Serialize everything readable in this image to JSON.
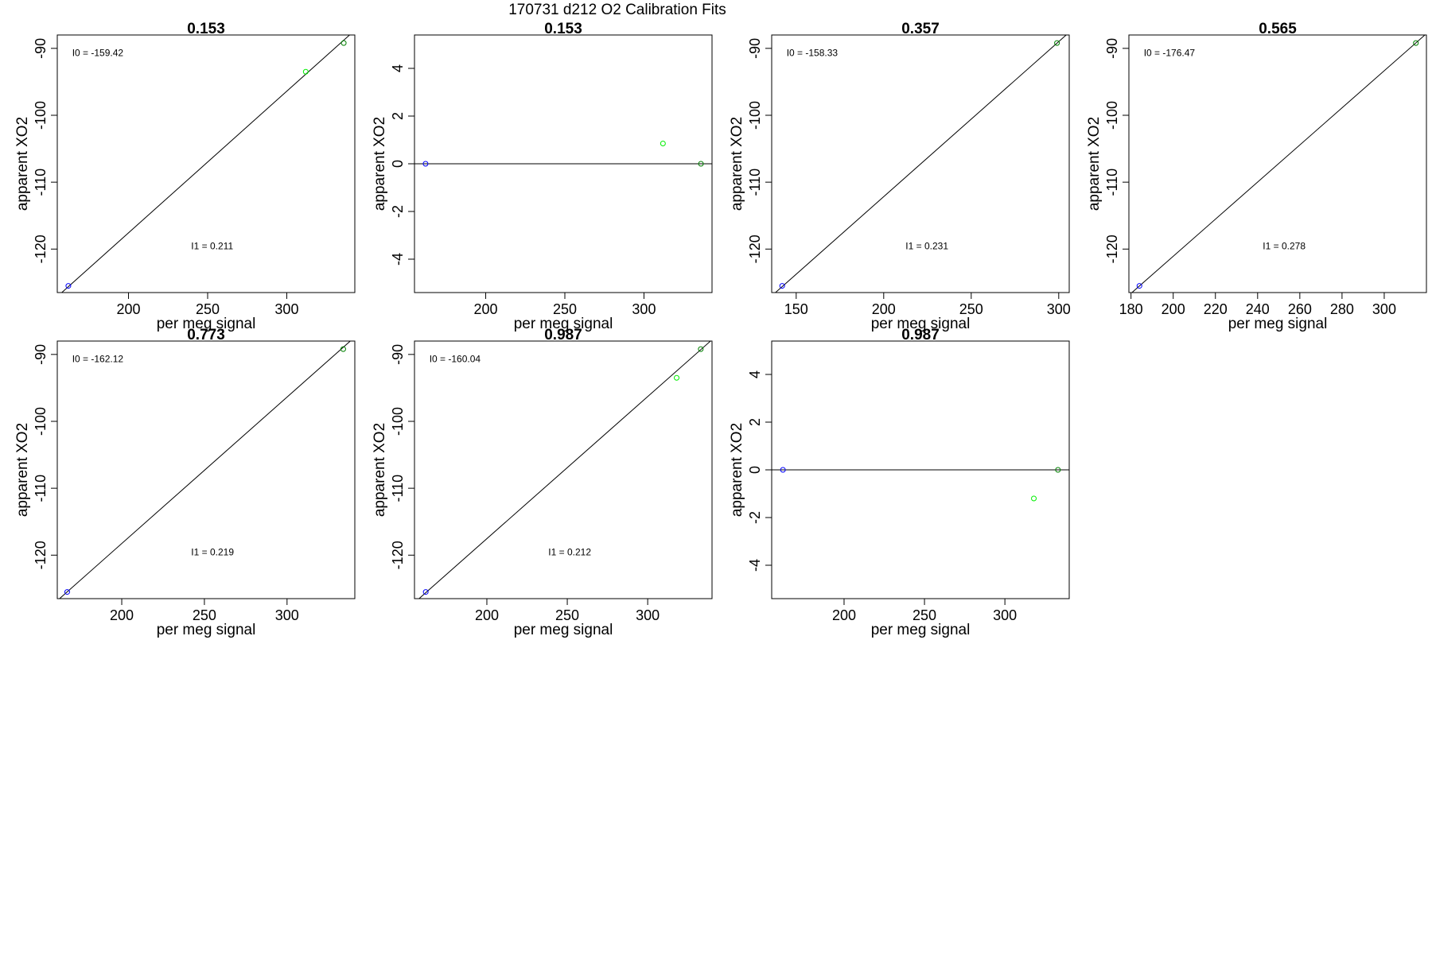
{
  "figure": {
    "title": "170731   d212   O2 Calibration Fits"
  },
  "chart_data": [
    {
      "type": "scatter",
      "title": "0.153",
      "xlabel": "per meg signal",
      "ylabel": "apparent XO2",
      "xlim": [
        155,
        343
      ],
      "ylim": [
        -126.5,
        -88
      ],
      "xticks": [
        200,
        250,
        300
      ],
      "yticks": [
        -120,
        -110,
        -100,
        -90
      ],
      "points": [
        {
          "x": 162,
          "y": -125.5,
          "color": "#0000ff"
        },
        {
          "x": 312,
          "y": -93.5,
          "color": "#00ee00"
        },
        {
          "x": 336,
          "y": -89.2,
          "color": "#008000"
        }
      ],
      "fit_line": [
        [
          155,
          -127.1
        ],
        [
          343,
          -87.3
        ]
      ],
      "annotations": [
        "I0 =  -159.42",
        "I1 =  0.211"
      ]
    },
    {
      "type": "scatter",
      "title": "0.153",
      "xlabel": "per meg signal",
      "ylabel": "apparent XO2",
      "xlim": [
        155,
        343
      ],
      "ylim": [
        -5.4,
        5.4
      ],
      "xticks": [
        200,
        250,
        300
      ],
      "yticks": [
        -4,
        -2,
        0,
        2,
        4
      ],
      "points": [
        {
          "x": 162,
          "y": 0,
          "color": "#0000ff"
        },
        {
          "x": 312,
          "y": 0.85,
          "color": "#00ee00"
        },
        {
          "x": 336,
          "y": 0,
          "color": "#008000"
        }
      ],
      "fit_line": [
        [
          155,
          0
        ],
        [
          343,
          0
        ]
      ],
      "annotations": []
    },
    {
      "type": "scatter",
      "title": "0.357",
      "xlabel": "per meg signal",
      "ylabel": "apparent XO2",
      "xlim": [
        136,
        306
      ],
      "ylim": [
        -126.5,
        -88
      ],
      "xticks": [
        150,
        200,
        250,
        300
      ],
      "yticks": [
        -120,
        -110,
        -100,
        -90
      ],
      "points": [
        {
          "x": 142,
          "y": -125.5,
          "color": "#0000ff"
        },
        {
          "x": 299,
          "y": -89.2,
          "color": "#008000"
        }
      ],
      "fit_line": [
        [
          136,
          -127.0
        ],
        [
          306,
          -87.6
        ]
      ],
      "annotations": [
        "I0 =  -158.33",
        "I1 =  0.231"
      ]
    },
    {
      "type": "scatter",
      "title": "0.565",
      "xlabel": "per meg signal",
      "ylabel": "apparent XO2",
      "xlim": [
        179,
        320
      ],
      "ylim": [
        -126.5,
        -88
      ],
      "xticks": [
        180,
        200,
        220,
        240,
        260,
        280,
        300
      ],
      "yticks": [
        -120,
        -110,
        -100,
        -90
      ],
      "points": [
        {
          "x": 184,
          "y": -125.5,
          "color": "#0000ff"
        },
        {
          "x": 315,
          "y": -89.2,
          "color": "#008000"
        }
      ],
      "fit_line": [
        [
          179,
          -126.9
        ],
        [
          320,
          -87.8
        ]
      ],
      "annotations": [
        "I0 =  -176.47",
        "I1 =  0.278"
      ]
    },
    {
      "type": "scatter",
      "title": "0.773",
      "xlabel": "per meg signal",
      "ylabel": "apparent XO2",
      "xlim": [
        161,
        341
      ],
      "ylim": [
        -126.5,
        -88
      ],
      "xticks": [
        200,
        250,
        300
      ],
      "yticks": [
        -120,
        -110,
        -100,
        -90
      ],
      "points": [
        {
          "x": 167,
          "y": -125.5,
          "color": "#0000ff"
        },
        {
          "x": 334,
          "y": -89.2,
          "color": "#008000"
        }
      ],
      "fit_line": [
        [
          161,
          -126.8
        ],
        [
          341,
          -87.4
        ]
      ],
      "annotations": [
        "I0 =  -162.12",
        "I1 =  0.219"
      ]
    },
    {
      "type": "scatter",
      "title": "0.987",
      "xlabel": "per meg signal",
      "ylabel": "apparent XO2",
      "xlim": [
        155,
        340
      ],
      "ylim": [
        -126.5,
        -88
      ],
      "xticks": [
        200,
        250,
        300
      ],
      "yticks": [
        -120,
        -110,
        -100,
        -90
      ],
      "points": [
        {
          "x": 162,
          "y": -125.5,
          "color": "#0000ff"
        },
        {
          "x": 318,
          "y": -93.5,
          "color": "#00ee00"
        },
        {
          "x": 333,
          "y": -89.2,
          "color": "#008000"
        }
      ],
      "fit_line": [
        [
          155,
          -127.1
        ],
        [
          340,
          -87.8
        ]
      ],
      "annotations": [
        "I0 =  -160.04",
        "I1 =  0.212"
      ]
    },
    {
      "type": "scatter",
      "title": "0.987",
      "xlabel": "per meg signal",
      "ylabel": "apparent XO2",
      "xlim": [
        155,
        340
      ],
      "ylim": [
        -5.4,
        5.4
      ],
      "xticks": [
        200,
        250,
        300
      ],
      "yticks": [
        -4,
        -2,
        0,
        2,
        4
      ],
      "points": [
        {
          "x": 162,
          "y": 0,
          "color": "#0000ff"
        },
        {
          "x": 318,
          "y": -1.2,
          "color": "#00ee00"
        },
        {
          "x": 333,
          "y": 0,
          "color": "#008000"
        }
      ],
      "fit_line": [
        [
          155,
          0
        ],
        [
          340,
          0
        ]
      ],
      "annotations": []
    }
  ]
}
